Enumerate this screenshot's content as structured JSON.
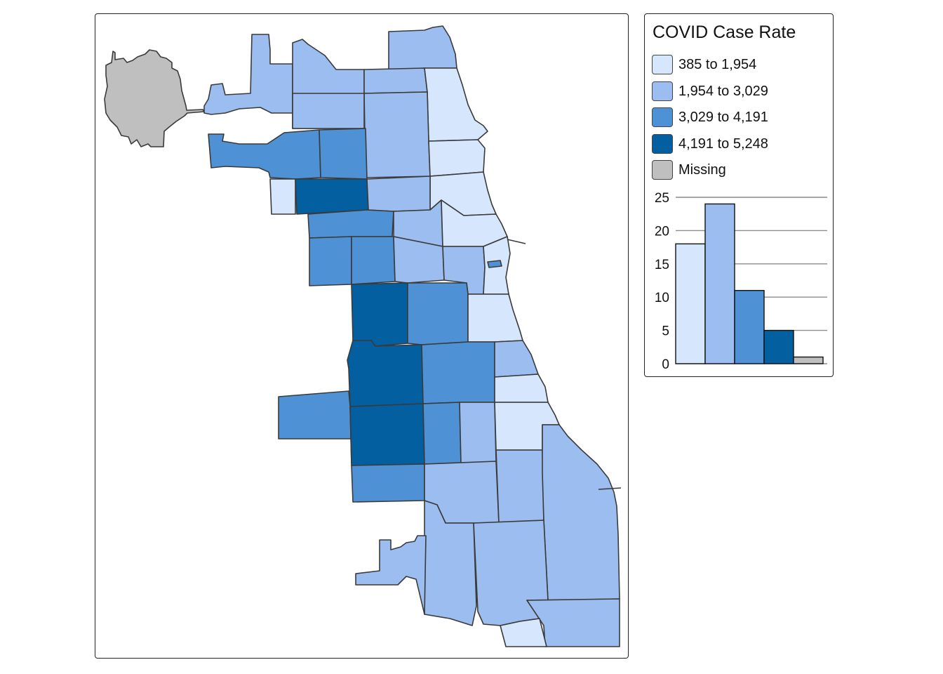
{
  "legend": {
    "title": "COVID Case Rate",
    "items": [
      {
        "label": "385 to 1,954",
        "color": "#d6e6fd"
      },
      {
        "label": "1,954 to 3,029",
        "color": "#9bbdef"
      },
      {
        "label": "3,029 to 4,191",
        "color": "#4e91d4"
      },
      {
        "label": "4,191 to 5,248",
        "color": "#045fa0"
      },
      {
        "label": "Missing",
        "color": "#bfbfbf"
      }
    ]
  },
  "chart_data": {
    "type": "bar",
    "categories": [
      "385 to 1,954",
      "1,954 to 3,029",
      "3,029 to 4,191",
      "4,191 to 5,248",
      "Missing"
    ],
    "values": [
      18,
      24,
      11,
      5,
      1
    ],
    "ylim": [
      0,
      25
    ],
    "yticks": [
      "0",
      "5",
      "10",
      "15",
      "20",
      "25"
    ],
    "grid": true
  }
}
